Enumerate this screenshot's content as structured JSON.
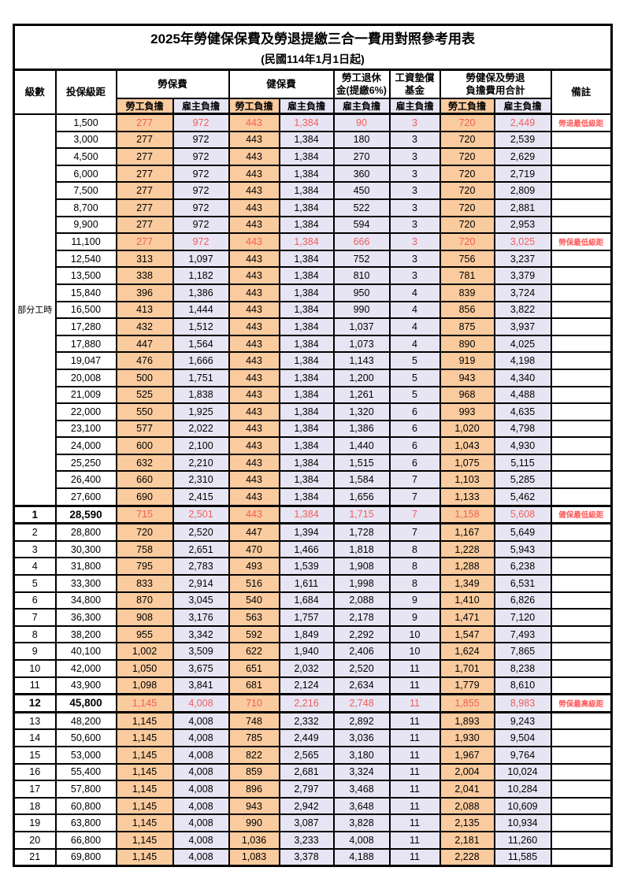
{
  "title": "2025年勞健保保費及勞退提繳三合一費用對照參考用表",
  "subtitle": "(民國114年1月1日起)",
  "colors": {
    "orange": "#FACB9E",
    "purple": "#E7E5F3",
    "red": "#EF5E5D",
    "remark-red": "#FF5B5B",
    "border": "#000000"
  },
  "header": {
    "level": "級數",
    "salary": "投保級距",
    "labor_ins": "勞保費",
    "health_ins": "健保費",
    "pension_l1": "勞工退休",
    "pension_l2": "金(提繳6%)",
    "wage_fund_l1": "工資墊償",
    "wage_fund_l2": "基金",
    "total_l1": "勞健保及勞退",
    "total_l2": "負擔費用合計",
    "remark": "備註",
    "employee": "勞工負擔",
    "employer": "雇主負擔"
  },
  "part_time_label": "部分工時",
  "part_time_rowspan": 23,
  "rows": [
    {
      "level": "",
      "salary": "1,500",
      "values": [
        "277",
        "972",
        "443",
        "1,384",
        "90",
        "3",
        "720",
        "2,449"
      ],
      "remark": "勞退最低級距",
      "hl": true
    },
    {
      "level": "",
      "salary": "3,000",
      "values": [
        "277",
        "972",
        "443",
        "1,384",
        "180",
        "3",
        "720",
        "2,539"
      ],
      "remark": ""
    },
    {
      "level": "",
      "salary": "4,500",
      "values": [
        "277",
        "972",
        "443",
        "1,384",
        "270",
        "3",
        "720",
        "2,629"
      ],
      "remark": ""
    },
    {
      "level": "",
      "salary": "6,000",
      "values": [
        "277",
        "972",
        "443",
        "1,384",
        "360",
        "3",
        "720",
        "2,719"
      ],
      "remark": ""
    },
    {
      "level": "",
      "salary": "7,500",
      "values": [
        "277",
        "972",
        "443",
        "1,384",
        "450",
        "3",
        "720",
        "2,809"
      ],
      "remark": ""
    },
    {
      "level": "",
      "salary": "8,700",
      "values": [
        "277",
        "972",
        "443",
        "1,384",
        "522",
        "3",
        "720",
        "2,881"
      ],
      "remark": ""
    },
    {
      "level": "",
      "salary": "9,900",
      "values": [
        "277",
        "972",
        "443",
        "1,384",
        "594",
        "3",
        "720",
        "2,953"
      ],
      "remark": ""
    },
    {
      "level": "",
      "salary": "11,100",
      "values": [
        "277",
        "972",
        "443",
        "1,384",
        "666",
        "3",
        "720",
        "3,025"
      ],
      "remark": "勞保最低級距",
      "hl": true
    },
    {
      "level": "",
      "salary": "12,540",
      "values": [
        "313",
        "1,097",
        "443",
        "1,384",
        "752",
        "3",
        "756",
        "3,237"
      ],
      "remark": ""
    },
    {
      "level": "",
      "salary": "13,500",
      "values": [
        "338",
        "1,182",
        "443",
        "1,384",
        "810",
        "3",
        "781",
        "3,379"
      ],
      "remark": ""
    },
    {
      "level": "",
      "salary": "15,840",
      "values": [
        "396",
        "1,386",
        "443",
        "1,384",
        "950",
        "4",
        "839",
        "3,724"
      ],
      "remark": ""
    },
    {
      "level": "",
      "salary": "16,500",
      "values": [
        "413",
        "1,444",
        "443",
        "1,384",
        "990",
        "4",
        "856",
        "3,822"
      ],
      "remark": ""
    },
    {
      "level": "",
      "salary": "17,280",
      "values": [
        "432",
        "1,512",
        "443",
        "1,384",
        "1,037",
        "4",
        "875",
        "3,937"
      ],
      "remark": ""
    },
    {
      "level": "",
      "salary": "17,880",
      "values": [
        "447",
        "1,564",
        "443",
        "1,384",
        "1,073",
        "4",
        "890",
        "4,025"
      ],
      "remark": ""
    },
    {
      "level": "",
      "salary": "19,047",
      "values": [
        "476",
        "1,666",
        "443",
        "1,384",
        "1,143",
        "5",
        "919",
        "4,198"
      ],
      "remark": ""
    },
    {
      "level": "",
      "salary": "20,008",
      "values": [
        "500",
        "1,751",
        "443",
        "1,384",
        "1,200",
        "5",
        "943",
        "4,340"
      ],
      "remark": ""
    },
    {
      "level": "",
      "salary": "21,009",
      "values": [
        "525",
        "1,838",
        "443",
        "1,384",
        "1,261",
        "5",
        "968",
        "4,488"
      ],
      "remark": ""
    },
    {
      "level": "",
      "salary": "22,000",
      "values": [
        "550",
        "1,925",
        "443",
        "1,384",
        "1,320",
        "6",
        "993",
        "4,635"
      ],
      "remark": ""
    },
    {
      "level": "",
      "salary": "23,100",
      "values": [
        "577",
        "2,022",
        "443",
        "1,384",
        "1,386",
        "6",
        "1,020",
        "4,798"
      ],
      "remark": ""
    },
    {
      "level": "",
      "salary": "24,000",
      "values": [
        "600",
        "2,100",
        "443",
        "1,384",
        "1,440",
        "6",
        "1,043",
        "4,930"
      ],
      "remark": ""
    },
    {
      "level": "",
      "salary": "25,250",
      "values": [
        "632",
        "2,210",
        "443",
        "1,384",
        "1,515",
        "6",
        "1,075",
        "5,115"
      ],
      "remark": ""
    },
    {
      "level": "",
      "salary": "26,400",
      "values": [
        "660",
        "2,310",
        "443",
        "1,384",
        "1,584",
        "7",
        "1,103",
        "5,285"
      ],
      "remark": ""
    },
    {
      "level": "",
      "salary": "27,600",
      "values": [
        "690",
        "2,415",
        "443",
        "1,384",
        "1,656",
        "7",
        "1,133",
        "5,462"
      ],
      "remark": ""
    },
    {
      "level": "1",
      "salary": "28,590",
      "values": [
        "715",
        "2,501",
        "443",
        "1,384",
        "1,715",
        "7",
        "1,158",
        "5,608"
      ],
      "remark": "健保最低級距",
      "hl": true,
      "thick": true,
      "emph": true
    },
    {
      "level": "2",
      "salary": "28,800",
      "values": [
        "720",
        "2,520",
        "447",
        "1,394",
        "1,728",
        "7",
        "1,167",
        "5,649"
      ],
      "remark": "",
      "thick": true
    },
    {
      "level": "3",
      "salary": "30,300",
      "values": [
        "758",
        "2,651",
        "470",
        "1,466",
        "1,818",
        "8",
        "1,228",
        "5,943"
      ],
      "remark": ""
    },
    {
      "level": "4",
      "salary": "31,800",
      "values": [
        "795",
        "2,783",
        "493",
        "1,539",
        "1,908",
        "8",
        "1,288",
        "6,238"
      ],
      "remark": ""
    },
    {
      "level": "5",
      "salary": "33,300",
      "values": [
        "833",
        "2,914",
        "516",
        "1,611",
        "1,998",
        "8",
        "1,349",
        "6,531"
      ],
      "remark": ""
    },
    {
      "level": "6",
      "salary": "34,800",
      "values": [
        "870",
        "3,045",
        "540",
        "1,684",
        "2,088",
        "9",
        "1,410",
        "6,826"
      ],
      "remark": ""
    },
    {
      "level": "7",
      "salary": "36,300",
      "values": [
        "908",
        "3,176",
        "563",
        "1,757",
        "2,178",
        "9",
        "1,471",
        "7,120"
      ],
      "remark": ""
    },
    {
      "level": "8",
      "salary": "38,200",
      "values": [
        "955",
        "3,342",
        "592",
        "1,849",
        "2,292",
        "10",
        "1,547",
        "7,493"
      ],
      "remark": ""
    },
    {
      "level": "9",
      "salary": "40,100",
      "values": [
        "1,002",
        "3,509",
        "622",
        "1,940",
        "2,406",
        "10",
        "1,624",
        "7,865"
      ],
      "remark": ""
    },
    {
      "level": "10",
      "salary": "42,000",
      "values": [
        "1,050",
        "3,675",
        "651",
        "2,032",
        "2,520",
        "11",
        "1,701",
        "8,238"
      ],
      "remark": ""
    },
    {
      "level": "11",
      "salary": "43,900",
      "values": [
        "1,098",
        "3,841",
        "681",
        "2,124",
        "2,634",
        "11",
        "1,779",
        "8,610"
      ],
      "remark": ""
    },
    {
      "level": "12",
      "salary": "45,800",
      "values": [
        "1,145",
        "4,008",
        "710",
        "2,216",
        "2,748",
        "11",
        "1,855",
        "8,983"
      ],
      "remark": "勞保最高級距",
      "hl": true,
      "thick": true,
      "emph": true
    },
    {
      "level": "13",
      "salary": "48,200",
      "values": [
        "1,145",
        "4,008",
        "748",
        "2,332",
        "2,892",
        "11",
        "1,893",
        "9,243"
      ],
      "remark": "",
      "thick": true
    },
    {
      "level": "14",
      "salary": "50,600",
      "values": [
        "1,145",
        "4,008",
        "785",
        "2,449",
        "3,036",
        "11",
        "1,930",
        "9,504"
      ],
      "remark": ""
    },
    {
      "level": "15",
      "salary": "53,000",
      "values": [
        "1,145",
        "4,008",
        "822",
        "2,565",
        "3,180",
        "11",
        "1,967",
        "9,764"
      ],
      "remark": ""
    },
    {
      "level": "16",
      "salary": "55,400",
      "values": [
        "1,145",
        "4,008",
        "859",
        "2,681",
        "3,324",
        "11",
        "2,004",
        "10,024"
      ],
      "remark": ""
    },
    {
      "level": "17",
      "salary": "57,800",
      "values": [
        "1,145",
        "4,008",
        "896",
        "2,797",
        "3,468",
        "11",
        "2,041",
        "10,284"
      ],
      "remark": ""
    },
    {
      "level": "18",
      "salary": "60,800",
      "values": [
        "1,145",
        "4,008",
        "943",
        "2,942",
        "3,648",
        "11",
        "2,088",
        "10,609"
      ],
      "remark": ""
    },
    {
      "level": "19",
      "salary": "63,800",
      "values": [
        "1,145",
        "4,008",
        "990",
        "3,087",
        "3,828",
        "11",
        "2,135",
        "10,934"
      ],
      "remark": ""
    },
    {
      "level": "20",
      "salary": "66,800",
      "values": [
        "1,145",
        "4,008",
        "1,036",
        "3,233",
        "4,008",
        "11",
        "2,181",
        "11,260"
      ],
      "remark": ""
    },
    {
      "level": "21",
      "salary": "69,800",
      "values": [
        "1,145",
        "4,008",
        "1,083",
        "3,378",
        "4,188",
        "11",
        "2,228",
        "11,585"
      ],
      "remark": ""
    }
  ]
}
